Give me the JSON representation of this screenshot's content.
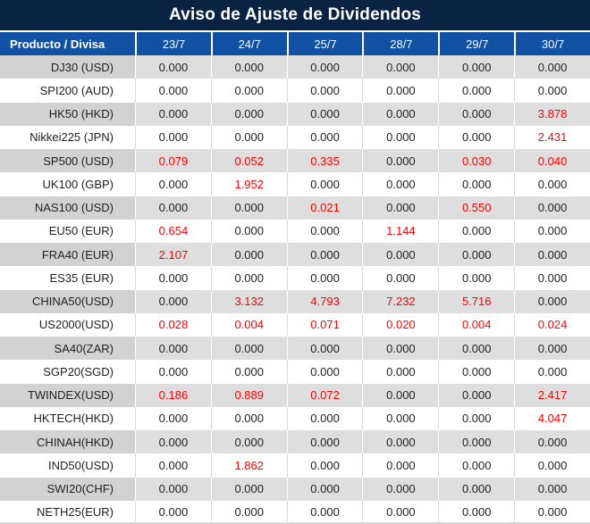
{
  "title": "Aviso de Ajuste de Dividendos",
  "table": {
    "product_header": "Producto / Divisa",
    "date_headers": [
      "23/7",
      "24/7",
      "25/7",
      "28/7",
      "29/7",
      "30/7"
    ],
    "rows": [
      {
        "product": "DJ30 (USD)",
        "values": [
          "0.000",
          "0.000",
          "0.000",
          "0.000",
          "0.000",
          "0.000"
        ]
      },
      {
        "product": "SPI200 (AUD)",
        "values": [
          "0.000",
          "0.000",
          "0.000",
          "0.000",
          "0.000",
          "0.000"
        ]
      },
      {
        "product": "HK50 (HKD)",
        "values": [
          "0.000",
          "0.000",
          "0.000",
          "0.000",
          "0.000",
          "3.878"
        ]
      },
      {
        "product": "Nikkei225 (JPN)",
        "values": [
          "0.000",
          "0.000",
          "0.000",
          "0.000",
          "0.000",
          "2.431"
        ]
      },
      {
        "product": "SP500 (USD)",
        "values": [
          "0.079",
          "0.052",
          "0.335",
          "0.000",
          "0.030",
          "0.040"
        ]
      },
      {
        "product": "UK100 (GBP)",
        "values": [
          "0.000",
          "1.952",
          "0.000",
          "0.000",
          "0.000",
          "0.000"
        ]
      },
      {
        "product": "NAS100 (USD)",
        "values": [
          "0.000",
          "0.000",
          "0.021",
          "0.000",
          "0.550",
          "0.000"
        ]
      },
      {
        "product": "EU50 (EUR)",
        "values": [
          "0.654",
          "0.000",
          "0.000",
          "1.144",
          "0.000",
          "0.000"
        ]
      },
      {
        "product": "FRA40 (EUR)",
        "values": [
          "2.107",
          "0.000",
          "0.000",
          "0.000",
          "0.000",
          "0.000"
        ]
      },
      {
        "product": "ES35 (EUR)",
        "values": [
          "0.000",
          "0.000",
          "0.000",
          "0.000",
          "0.000",
          "0.000"
        ]
      },
      {
        "product": "CHINA50(USD)",
        "values": [
          "0.000",
          "3.132",
          "4.793",
          "7.232",
          "5.716",
          "0.000"
        ]
      },
      {
        "product": "US2000(USD)",
        "values": [
          "0.028",
          "0.004",
          "0.071",
          "0.020",
          "0.004",
          "0.024"
        ]
      },
      {
        "product": "SA40(ZAR)",
        "values": [
          "0.000",
          "0.000",
          "0.000",
          "0.000",
          "0.000",
          "0.000"
        ]
      },
      {
        "product": "SGP20(SGD)",
        "values": [
          "0.000",
          "0.000",
          "0.000",
          "0.000",
          "0.000",
          "0.000"
        ]
      },
      {
        "product": "TWINDEX(USD)",
        "values": [
          "0.186",
          "0.889",
          "0.072",
          "0.000",
          "0.000",
          "2.417"
        ]
      },
      {
        "product": "HKTECH(HKD)",
        "values": [
          "0.000",
          "0.000",
          "0.000",
          "0.000",
          "0.000",
          "4.047"
        ]
      },
      {
        "product": "CHINAH(HKD)",
        "values": [
          "0.000",
          "0.000",
          "0.000",
          "0.000",
          "0.000",
          "0.000"
        ]
      },
      {
        "product": "IND50(USD)",
        "values": [
          "0.000",
          "1.862",
          "0.000",
          "0.000",
          "0.000",
          "0.000"
        ]
      },
      {
        "product": "SWI20(CHF)",
        "values": [
          "0.000",
          "0.000",
          "0.000",
          "0.000",
          "0.000",
          "0.000"
        ]
      },
      {
        "product": "NETH25(EUR)",
        "values": [
          "0.000",
          "0.000",
          "0.000",
          "0.000",
          "0.000",
          "0.000"
        ]
      }
    ]
  },
  "colors": {
    "title_bg": "#0B2343",
    "header_bg": "#1151A4",
    "row_alt_bg": "#DEDEDE",
    "product_alt_bg": "#D2D2D2",
    "text": "#1F1F1F",
    "red": "#FF0000"
  }
}
